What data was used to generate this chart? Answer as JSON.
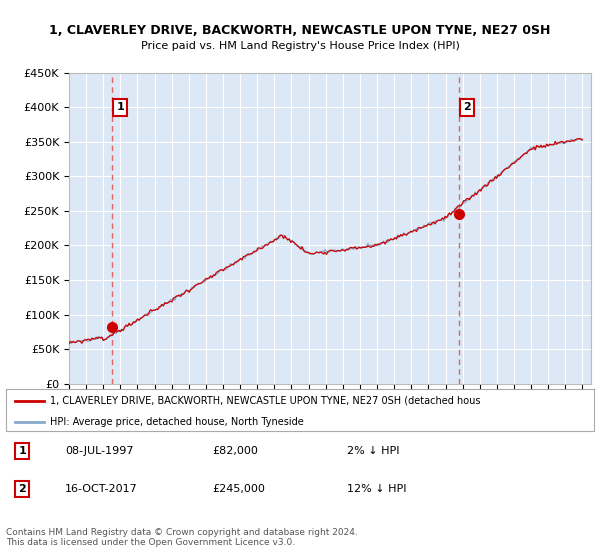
{
  "title1": "1, CLAVERLEY DRIVE, BACKWORTH, NEWCASTLE UPON TYNE, NE27 0SH",
  "title2": "Price paid vs. HM Land Registry's House Price Index (HPI)",
  "ylim": [
    0,
    450000
  ],
  "yticks": [
    0,
    50000,
    100000,
    150000,
    200000,
    250000,
    300000,
    350000,
    400000,
    450000
  ],
  "ytick_labels": [
    "£0",
    "£50K",
    "£100K",
    "£150K",
    "£200K",
    "£250K",
    "£300K",
    "£350K",
    "£400K",
    "£450K"
  ],
  "background_color": "#dce8f5",
  "grid_color": "#ffffff",
  "sale1_year": 1997.52,
  "sale1_price": 82000,
  "sale1_label": "1",
  "sale2_year": 2017.79,
  "sale2_price": 245000,
  "sale2_label": "2",
  "sale1_info": "08-JUL-1997",
  "sale1_price_str": "£82,000",
  "sale1_hpi": "2% ↓ HPI",
  "sale2_info": "16-OCT-2017",
  "sale2_price_str": "£245,000",
  "sale2_hpi": "12% ↓ HPI",
  "legend_line1": "1, CLAVERLEY DRIVE, BACKWORTH, NEWCASTLE UPON TYNE, NE27 0SH (detached hous",
  "legend_line2": "HPI: Average price, detached house, North Tyneside",
  "footer": "Contains HM Land Registry data © Crown copyright and database right 2024.\nThis data is licensed under the Open Government Licence v3.0.",
  "line_color_red": "#cc0000",
  "line_color_blue": "#88aacc",
  "marker_color": "#cc0000",
  "dashed_line_color": "#dd6666"
}
